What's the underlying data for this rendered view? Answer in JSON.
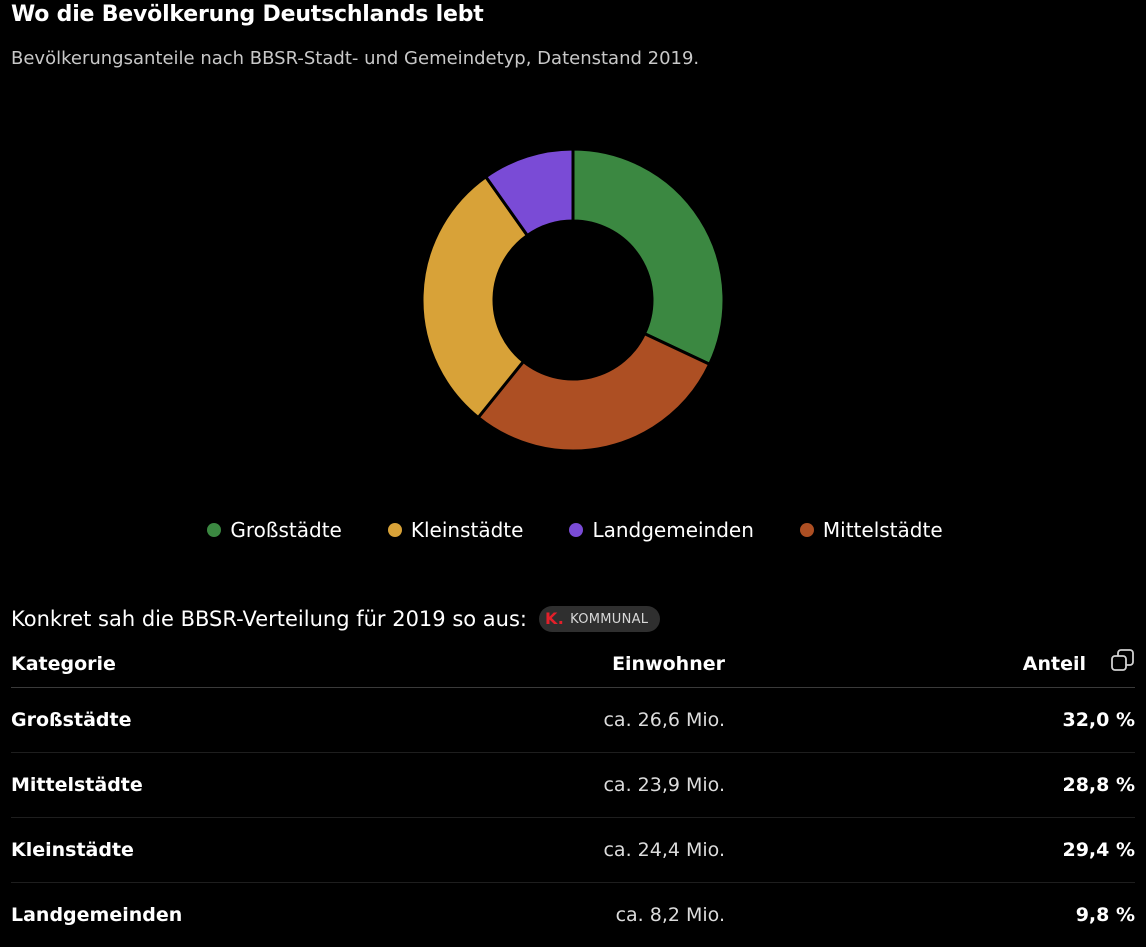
{
  "header": {
    "title": "Wo die Bevölkerung Deutschlands lebt",
    "subtitle": "Bevölkerungsanteile nach BBSR-Stadt- und Gemeindetyp, Datenstand 2019."
  },
  "chart_data": {
    "type": "pie",
    "variant": "donut",
    "categories": [
      "Großstädte",
      "Mittelstädte",
      "Kleinstädte",
      "Landgemeinden"
    ],
    "values": [
      32.0,
      28.8,
      29.4,
      9.8
    ],
    "colors": [
      "#3b8841",
      "#ad4f23",
      "#d8a238",
      "#7a4bd6"
    ],
    "legend": [
      "Großstädte",
      "Kleinstädte",
      "Landgemeinden",
      "Mittelstädte"
    ],
    "legend_colors": [
      "#3b8841",
      "#d8a238",
      "#7a4bd6",
      "#ad4f23"
    ],
    "legend_position": "bottom"
  },
  "intro": {
    "text": "Konkret sah die BBSR-Verteilung für 2019 so aus:",
    "badge_logo": "K.",
    "badge_label": "KOMMUNAL"
  },
  "table": {
    "headers": {
      "kategorie": "Kategorie",
      "einwohner": "Einwohner",
      "anteil": "Anteil"
    },
    "copy_icon": "copy-icon",
    "rows": [
      {
        "kategorie": "Großstädte",
        "einwohner": "ca. 26,6 Mio.",
        "anteil": "32,0 %"
      },
      {
        "kategorie": "Mittelstädte",
        "einwohner": "ca. 23,9 Mio.",
        "anteil": "28,8 %"
      },
      {
        "kategorie": "Kleinstädte",
        "einwohner": "ca. 24,4 Mio.",
        "anteil": "29,4 %"
      },
      {
        "kategorie": "Landgemeinden",
        "einwohner": "ca. 8,2 Mio.",
        "anteil": "9,8 %"
      }
    ]
  }
}
